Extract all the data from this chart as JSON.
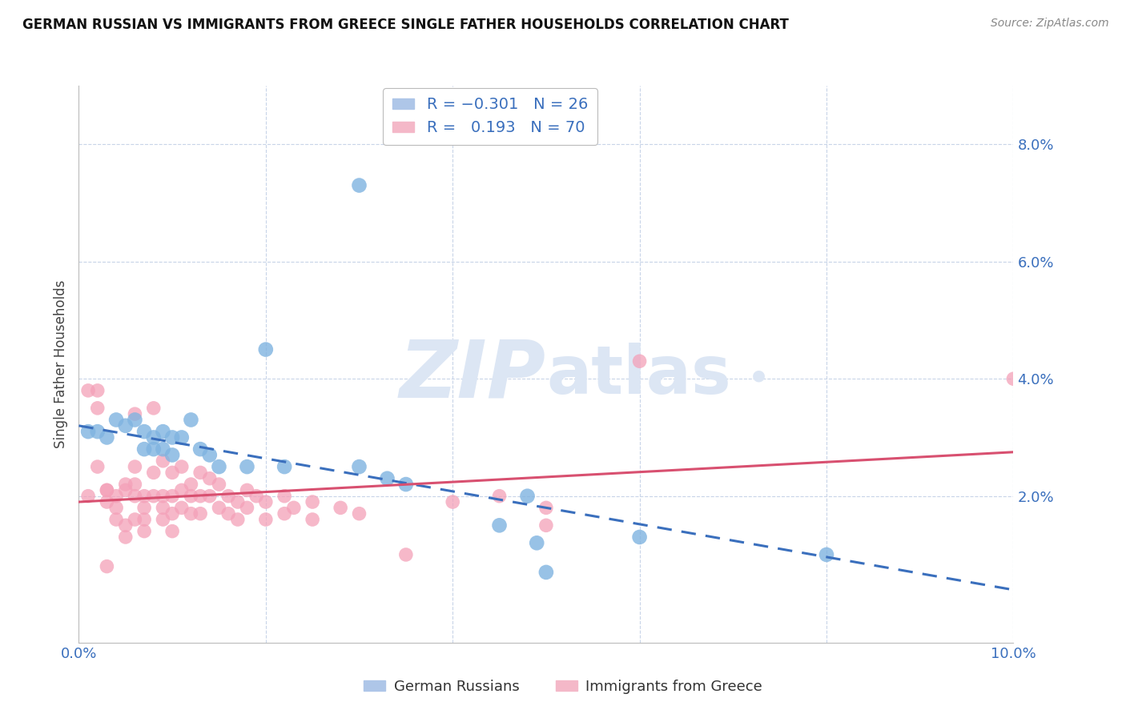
{
  "title": "GERMAN RUSSIAN VS IMMIGRANTS FROM GREECE SINGLE FATHER HOUSEHOLDS CORRELATION CHART",
  "source": "Source: ZipAtlas.com",
  "ylabel": "Single Father Households",
  "xlim": [
    0.0,
    0.1
  ],
  "ylim": [
    -0.005,
    0.09
  ],
  "x_ticks": [
    0.0,
    0.02,
    0.04,
    0.06,
    0.08,
    0.1
  ],
  "x_tick_labels": [
    "0.0%",
    "",
    "",
    "",
    "",
    "10.0%"
  ],
  "y_ticks": [
    0.0,
    0.02,
    0.04,
    0.06,
    0.08
  ],
  "y_tick_labels": [
    "",
    "2.0%",
    "4.0%",
    "6.0%",
    "8.0%"
  ],
  "blue_color": "#7fb3e0",
  "pink_color": "#f4a0b8",
  "blue_line_color": "#3a6fbd",
  "pink_line_color": "#d85070",
  "blue_scatter": [
    [
      0.001,
      0.031
    ],
    [
      0.002,
      0.031
    ],
    [
      0.003,
      0.03
    ],
    [
      0.004,
      0.033
    ],
    [
      0.005,
      0.032
    ],
    [
      0.006,
      0.033
    ],
    [
      0.007,
      0.031
    ],
    [
      0.007,
      0.028
    ],
    [
      0.008,
      0.03
    ],
    [
      0.008,
      0.028
    ],
    [
      0.009,
      0.031
    ],
    [
      0.009,
      0.028
    ],
    [
      0.01,
      0.03
    ],
    [
      0.01,
      0.027
    ],
    [
      0.011,
      0.03
    ],
    [
      0.012,
      0.033
    ],
    [
      0.013,
      0.028
    ],
    [
      0.014,
      0.027
    ],
    [
      0.015,
      0.025
    ],
    [
      0.018,
      0.025
    ],
    [
      0.02,
      0.045
    ],
    [
      0.022,
      0.025
    ],
    [
      0.03,
      0.025
    ],
    [
      0.033,
      0.023
    ],
    [
      0.035,
      0.022
    ],
    [
      0.045,
      0.015
    ],
    [
      0.06,
      0.013
    ],
    [
      0.08,
      0.01
    ],
    [
      0.03,
      0.073
    ],
    [
      0.048,
      0.02
    ],
    [
      0.049,
      0.012
    ],
    [
      0.05,
      0.007
    ]
  ],
  "pink_scatter": [
    [
      0.001,
      0.02
    ],
    [
      0.001,
      0.038
    ],
    [
      0.002,
      0.038
    ],
    [
      0.002,
      0.025
    ],
    [
      0.002,
      0.035
    ],
    [
      0.003,
      0.021
    ],
    [
      0.003,
      0.019
    ],
    [
      0.003,
      0.021
    ],
    [
      0.004,
      0.02
    ],
    [
      0.004,
      0.018
    ],
    [
      0.004,
      0.016
    ],
    [
      0.005,
      0.022
    ],
    [
      0.005,
      0.021
    ],
    [
      0.005,
      0.015
    ],
    [
      0.005,
      0.013
    ],
    [
      0.006,
      0.034
    ],
    [
      0.006,
      0.025
    ],
    [
      0.006,
      0.022
    ],
    [
      0.006,
      0.02
    ],
    [
      0.006,
      0.016
    ],
    [
      0.007,
      0.02
    ],
    [
      0.007,
      0.018
    ],
    [
      0.007,
      0.016
    ],
    [
      0.007,
      0.014
    ],
    [
      0.008,
      0.035
    ],
    [
      0.008,
      0.024
    ],
    [
      0.008,
      0.02
    ],
    [
      0.009,
      0.026
    ],
    [
      0.009,
      0.02
    ],
    [
      0.009,
      0.018
    ],
    [
      0.009,
      0.016
    ],
    [
      0.01,
      0.024
    ],
    [
      0.01,
      0.02
    ],
    [
      0.01,
      0.017
    ],
    [
      0.01,
      0.014
    ],
    [
      0.011,
      0.025
    ],
    [
      0.011,
      0.021
    ],
    [
      0.011,
      0.018
    ],
    [
      0.012,
      0.022
    ],
    [
      0.012,
      0.02
    ],
    [
      0.012,
      0.017
    ],
    [
      0.013,
      0.024
    ],
    [
      0.013,
      0.02
    ],
    [
      0.013,
      0.017
    ],
    [
      0.014,
      0.023
    ],
    [
      0.014,
      0.02
    ],
    [
      0.015,
      0.022
    ],
    [
      0.015,
      0.018
    ],
    [
      0.016,
      0.02
    ],
    [
      0.016,
      0.017
    ],
    [
      0.017,
      0.019
    ],
    [
      0.017,
      0.016
    ],
    [
      0.018,
      0.021
    ],
    [
      0.018,
      0.018
    ],
    [
      0.019,
      0.02
    ],
    [
      0.02,
      0.019
    ],
    [
      0.02,
      0.016
    ],
    [
      0.022,
      0.02
    ],
    [
      0.022,
      0.017
    ],
    [
      0.023,
      0.018
    ],
    [
      0.025,
      0.019
    ],
    [
      0.025,
      0.016
    ],
    [
      0.028,
      0.018
    ],
    [
      0.03,
      0.017
    ],
    [
      0.035,
      0.01
    ],
    [
      0.04,
      0.019
    ],
    [
      0.045,
      0.02
    ],
    [
      0.05,
      0.018
    ],
    [
      0.05,
      0.015
    ],
    [
      0.06,
      0.043
    ],
    [
      0.1,
      0.04
    ],
    [
      0.003,
      0.008
    ]
  ],
  "blue_intercept": 0.032,
  "blue_slope": -0.28,
  "pink_intercept": 0.019,
  "pink_slope": 0.085
}
